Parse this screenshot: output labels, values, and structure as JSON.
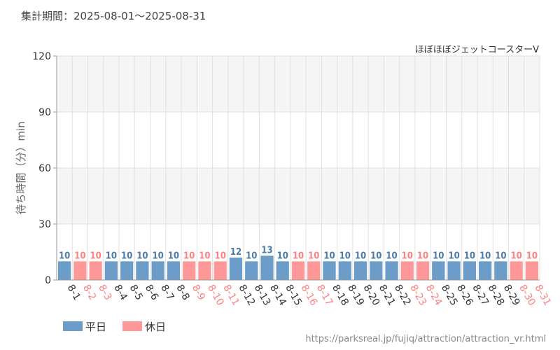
{
  "header": {
    "period": "集計期間：2025-08-01～2025-08-31",
    "attraction": "ほぼほぼジェットコースターV",
    "source_url": "https://parksreal.jp/fujiq/attraction/attraction_vr.html"
  },
  "colors": {
    "weekday": "#6b9dc8",
    "holiday": "#ff9999",
    "weekday_label": "#4a7aa6",
    "holiday_label": "#ff8080",
    "band": "#f5f5f5",
    "grid": "#e0e0e0"
  },
  "chart_data": {
    "type": "bar",
    "ylabel": "待ち時間（分）min",
    "ylim": [
      0,
      120
    ],
    "yticks": [
      0,
      30,
      60,
      90,
      120
    ],
    "categories": [
      "8-1",
      "8-2",
      "8-3",
      "8-4",
      "8-5",
      "8-6",
      "8-7",
      "8-8",
      "8-9",
      "8-10",
      "8-11",
      "8-12",
      "8-13",
      "8-14",
      "8-15",
      "8-16",
      "8-17",
      "8-18",
      "8-19",
      "8-20",
      "8-21",
      "8-22",
      "8-23",
      "8-24",
      "8-25",
      "8-26",
      "8-27",
      "8-28",
      "8-29",
      "8-30",
      "8-31"
    ],
    "values": [
      10,
      10,
      10,
      10,
      10,
      10,
      10,
      10,
      10,
      10,
      10,
      12,
      10,
      13,
      10,
      10,
      10,
      10,
      10,
      10,
      10,
      10,
      10,
      10,
      10,
      10,
      10,
      10,
      10,
      10,
      10
    ],
    "day_type": [
      "weekday",
      "holiday",
      "holiday",
      "weekday",
      "weekday",
      "weekday",
      "weekday",
      "weekday",
      "holiday",
      "holiday",
      "holiday",
      "weekday",
      "weekday",
      "weekday",
      "weekday",
      "holiday",
      "holiday",
      "weekday",
      "weekday",
      "weekday",
      "weekday",
      "weekday",
      "holiday",
      "holiday",
      "weekday",
      "weekday",
      "weekday",
      "weekday",
      "weekday",
      "holiday",
      "holiday"
    ],
    "legend": [
      {
        "key": "weekday",
        "label": "平日"
      },
      {
        "key": "holiday",
        "label": "休日"
      }
    ],
    "legend_position": "bottom-left",
    "grid": true
  }
}
